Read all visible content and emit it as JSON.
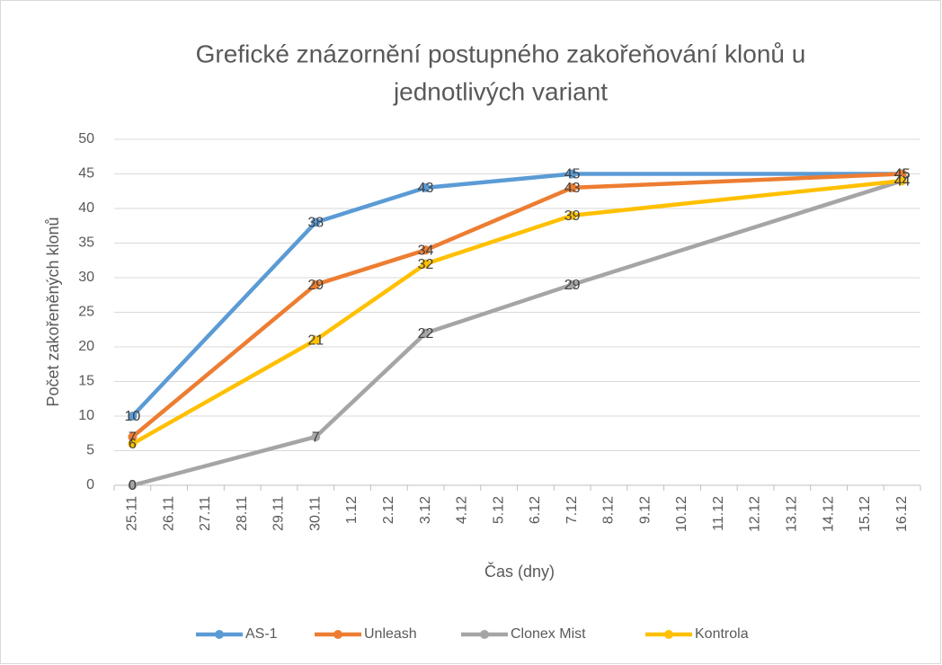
{
  "chart_data": {
    "type": "line",
    "title": [
      "Grefické znázornění postupného zakořeňování klonů u",
      "jednotlivých variant"
    ],
    "xlabel": "Čas (dny)",
    "ylabel": "Počet zakořeněných klonů",
    "xticks": [
      "25.11",
      "26.11",
      "27.11",
      "28.11",
      "29.11",
      "30.11",
      "1.12",
      "2.12",
      "3.12",
      "4.12",
      "5.12",
      "6.12",
      "7.12",
      "8.12",
      "9.12",
      "10.12",
      "11.12",
      "12.12",
      "13.12",
      "14.12",
      "15.12",
      "16.12"
    ],
    "x": [
      "25.11",
      "30.11",
      "3.12",
      "7.12",
      "16.12"
    ],
    "series": [
      {
        "name": "AS-1",
        "color": "#5b9bd5",
        "values": [
          10,
          38,
          43,
          45,
          45
        ]
      },
      {
        "name": "Unleash",
        "color": "#ed7d31",
        "values": [
          7,
          29,
          34,
          43,
          45
        ]
      },
      {
        "name": "Clonex Mist",
        "color": "#a5a5a5",
        "values": [
          0,
          7,
          22,
          29,
          44
        ]
      },
      {
        "name": "Kontrola",
        "color": "#ffc000",
        "values": [
          6,
          21,
          32,
          39,
          44
        ]
      }
    ],
    "ylim": [
      0,
      50
    ],
    "yticks": [
      0,
      5,
      10,
      15,
      20,
      25,
      30,
      35,
      40,
      45,
      50
    ],
    "grid": true,
    "legend": "bottom"
  }
}
